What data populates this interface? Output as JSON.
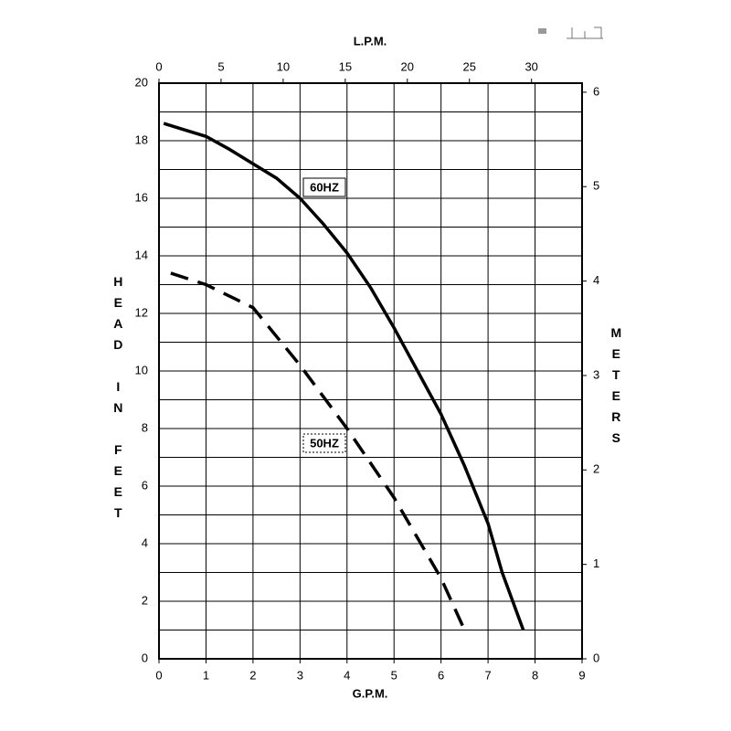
{
  "chart_data": {
    "type": "line",
    "xlabel": "G.P.M.",
    "ylabel": "HEAD IN FEET",
    "x2label": "L.P.M.",
    "y2label": "METERS",
    "xlim": [
      0,
      9
    ],
    "xticks": [
      0,
      1,
      2,
      3,
      4,
      5,
      6,
      7,
      8,
      9
    ],
    "ylim": [
      0,
      20
    ],
    "yticks": [
      0,
      2,
      4,
      6,
      8,
      10,
      12,
      14,
      16,
      18,
      20
    ],
    "yminorticks": [
      1,
      3,
      5,
      7,
      9,
      11,
      13,
      15,
      17,
      19
    ],
    "x2lim": [
      0,
      34.07
    ],
    "x2ticks": [
      0,
      5,
      10,
      15,
      20,
      25,
      30
    ],
    "y2lim": [
      0,
      6.096
    ],
    "y2ticks": [
      0,
      1,
      2,
      3,
      4,
      5,
      6
    ],
    "grid": true,
    "series": [
      {
        "name": "60HZ",
        "color": "#000000",
        "dash": "solid",
        "x": [
          0.1,
          0.5,
          1,
          1.5,
          2,
          2.5,
          3,
          3.5,
          4,
          4.5,
          5,
          5.5,
          6,
          6.5,
          7,
          7.3,
          7.75
        ],
        "values": [
          18.6,
          18.4,
          18.15,
          17.7,
          17.2,
          16.7,
          16.0,
          15.1,
          14.1,
          12.9,
          11.5,
          10.0,
          8.5,
          6.7,
          4.7,
          3.0,
          1.0
        ]
      },
      {
        "name": "50HZ",
        "color": "#000000",
        "dash": "dashed",
        "x": [
          0.25,
          1,
          2,
          3,
          4,
          5,
          6,
          6.5
        ],
        "values": [
          13.4,
          13.0,
          12.2,
          10.2,
          8.0,
          5.6,
          2.8,
          1.0
        ]
      }
    ]
  }
}
